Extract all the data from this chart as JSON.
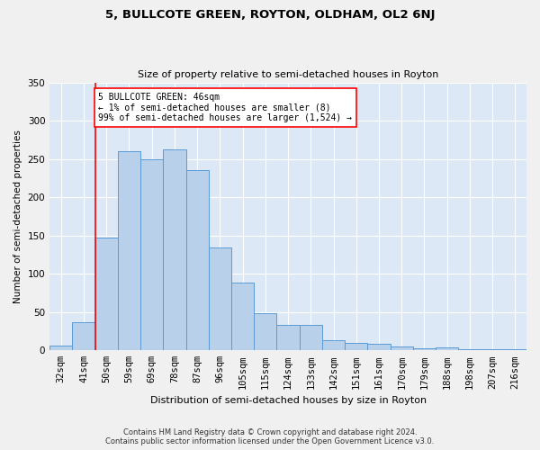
{
  "title": "5, BULLCOTE GREEN, ROYTON, OLDHAM, OL2 6NJ",
  "subtitle": "Size of property relative to semi-detached houses in Royton",
  "xlabel": "Distribution of semi-detached houses by size in Royton",
  "ylabel": "Number of semi-detached properties",
  "categories": [
    "32sqm",
    "41sqm",
    "50sqm",
    "59sqm",
    "69sqm",
    "78sqm",
    "87sqm",
    "96sqm",
    "105sqm",
    "115sqm",
    "124sqm",
    "133sqm",
    "142sqm",
    "151sqm",
    "161sqm",
    "170sqm",
    "179sqm",
    "188sqm",
    "198sqm",
    "207sqm",
    "216sqm"
  ],
  "values": [
    6,
    37,
    147,
    260,
    249,
    262,
    235,
    134,
    88,
    49,
    33,
    33,
    13,
    10,
    8,
    5,
    3,
    4,
    2,
    2,
    2
  ],
  "bar_color": "#b8d0ea",
  "bar_edge_color": "#5b9bd5",
  "vline_x_index": 1.5,
  "annotation_text": "5 BULLCOTE GREEN: 46sqm\n← 1% of semi-detached houses are smaller (8)\n99% of semi-detached houses are larger (1,524) →",
  "ylim": [
    0,
    350
  ],
  "background_color": "#dce8f5",
  "fig_background_color": "#f0f0f0",
  "footer_line1": "Contains HM Land Registry data © Crown copyright and database right 2024.",
  "footer_line2": "Contains public sector information licensed under the Open Government Licence v3.0."
}
